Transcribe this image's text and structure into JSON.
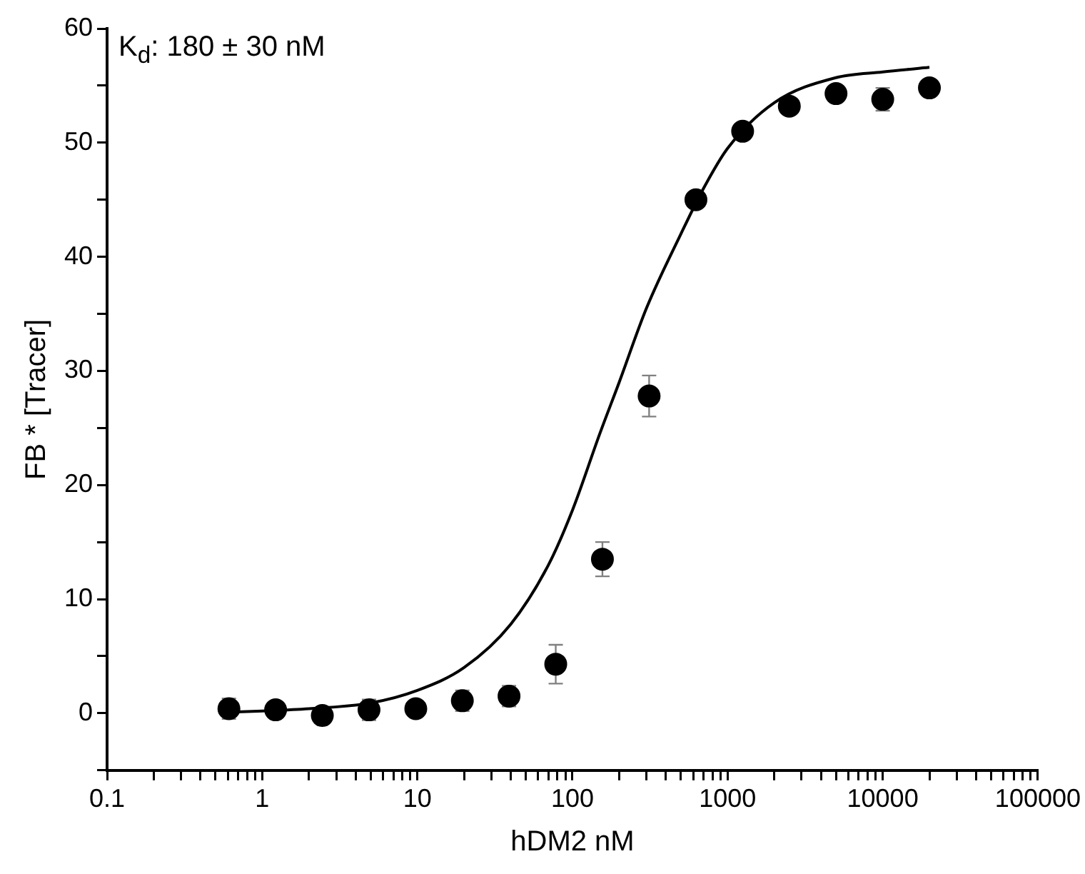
{
  "chart_data": {
    "type": "scatter",
    "xlabel": "hDM2 nM",
    "ylabel": "FB * [Tracer]",
    "annotations": [
      "K$_{d}$: 180 ± 30 nM"
    ],
    "log": "x",
    "xlim": [
      0.1,
      100000
    ],
    "ylim": [
      -5,
      60
    ],
    "xticks": [
      0.1,
      {
        "value": 0.2,
        "label": null
      },
      {
        "value": 0.3,
        "label": null
      },
      {
        "value": 0.4,
        "label": null
      },
      {
        "value": 0.5,
        "label": null
      },
      {
        "value": 0.6,
        "label": null
      },
      {
        "value": 0.7,
        "label": null
      },
      {
        "value": 0.8,
        "label": null
      },
      {
        "value": 0.9,
        "label": null
      },
      1,
      {
        "value": 2,
        "label": null
      },
      {
        "value": 3,
        "label": null
      },
      {
        "value": 4,
        "label": null
      },
      {
        "value": 5,
        "label": null
      },
      {
        "value": 6,
        "label": null
      },
      {
        "value": 7,
        "label": null
      },
      {
        "value": 8,
        "label": null
      },
      {
        "value": 9,
        "label": null
      },
      10,
      {
        "value": 20,
        "label": null
      },
      {
        "value": 30,
        "label": null
      },
      {
        "value": 40,
        "label": null
      },
      {
        "value": 50,
        "label": null
      },
      {
        "value": 60,
        "label": null
      },
      {
        "value": 70,
        "label": null
      },
      {
        "value": 80,
        "label": null
      },
      {
        "value": 90,
        "label": null
      },
      100,
      {
        "value": 200,
        "label": null
      },
      {
        "value": 300,
        "label": null
      },
      {
        "value": 400,
        "label": null
      },
      {
        "value": 500,
        "label": null
      },
      {
        "value": 600,
        "label": null
      },
      {
        "value": 700,
        "label": null
      },
      {
        "value": 800,
        "label": null
      },
      {
        "value": 900,
        "label": null
      },
      1000,
      {
        "value": 2000,
        "label": null
      },
      {
        "value": 3000,
        "label": null
      },
      {
        "value": 4000,
        "label": null
      },
      {
        "value": 5000,
        "label": null
      },
      {
        "value": 6000,
        "label": null
      },
      {
        "value": 7000,
        "label": null
      },
      {
        "value": 8000,
        "label": null
      },
      {
        "value": 9000,
        "label": null
      },
      10000,
      {
        "value": 20000,
        "label": null
      },
      {
        "value": 30000,
        "label": null
      },
      {
        "value": 40000,
        "label": null
      },
      {
        "value": 50000,
        "label": null
      },
      {
        "value": 60000,
        "label": null
      },
      {
        "value": 70000,
        "label": null
      },
      {
        "value": 80000,
        "label": null
      },
      {
        "value": 90000,
        "label": null
      },
      100000
    ],
    "yticks": [
      {
        "value": -5,
        "label": null
      },
      0,
      {
        "value": 5,
        "label": null
      },
      10,
      {
        "value": 15,
        "label": null
      },
      20,
      {
        "value": 25,
        "label": null
      },
      30,
      {
        "value": 35,
        "label": null
      },
      40,
      {
        "value": 45,
        "label": null
      },
      50,
      {
        "value": 55,
        "label": null
      },
      60
    ],
    "series": [
      {
        "marker": "circle",
        "color": "#000000",
        "x": [
          0.61,
          1.22,
          2.44,
          4.88,
          9.77,
          19.5,
          39,
          78,
          156,
          312,
          625,
          1250,
          2500,
          5000,
          10000,
          20000
        ],
        "values": [
          0.4,
          0.3,
          -0.2,
          0.3,
          0.4,
          1.1,
          1.5,
          4.3,
          13.5,
          27.8,
          45,
          51,
          53.2,
          54.3,
          53.8,
          54.8
        ],
        "errors": [
          0.9,
          null,
          null,
          0.9,
          null,
          0.9,
          0.9,
          1.7,
          1.5,
          1.8,
          null,
          null,
          null,
          null,
          1.0,
          null
        ]
      },
      {
        "type": "line",
        "marker": "none",
        "color": "#000000",
        "x": [
          0.61,
          1,
          2,
          5,
          10,
          20,
          40,
          70,
          100,
          150,
          200,
          300,
          500,
          700,
          1000,
          2000,
          5000,
          10000,
          20000
        ],
        "values": [
          0.1,
          0.2,
          0.4,
          0.9,
          2.0,
          4.0,
          7.8,
          13,
          17.8,
          24.5,
          29,
          35.5,
          42,
          46,
          49.5,
          53.5,
          55.7,
          56.2,
          56.6
        ]
      }
    ]
  }
}
